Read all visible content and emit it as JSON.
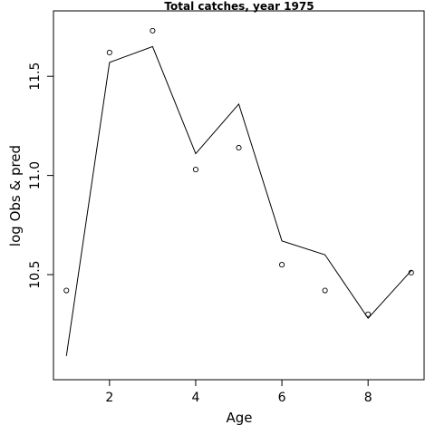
{
  "chart_data": {
    "type": "line",
    "title": "Total catches, year 1975",
    "xlabel": "Age",
    "ylabel": "log Obs & pred",
    "xlim": [
      0.7,
      9.3
    ],
    "ylim": [
      9.97,
      11.83
    ],
    "x_ticks": [
      2,
      4,
      6,
      8
    ],
    "y_ticks": [
      10.5,
      11.0,
      11.5
    ],
    "x_tick_labels": [
      "2",
      "4",
      "6",
      "8"
    ],
    "y_tick_labels": [
      "10.5",
      "11.0",
      "11.5"
    ],
    "grid": false,
    "series": [
      {
        "style": "points",
        "marker": "open-circle",
        "x": [
          1,
          2,
          3,
          4,
          5,
          6,
          7,
          8,
          9
        ],
        "y": [
          10.42,
          11.62,
          11.73,
          11.03,
          11.14,
          10.55,
          10.42,
          10.3,
          10.51
        ]
      },
      {
        "style": "line",
        "x": [
          1,
          2,
          3,
          4,
          5,
          6,
          7,
          8,
          9
        ],
        "y": [
          10.09,
          11.57,
          11.65,
          11.11,
          11.36,
          10.67,
          10.6,
          10.28,
          10.52
        ]
      }
    ]
  }
}
